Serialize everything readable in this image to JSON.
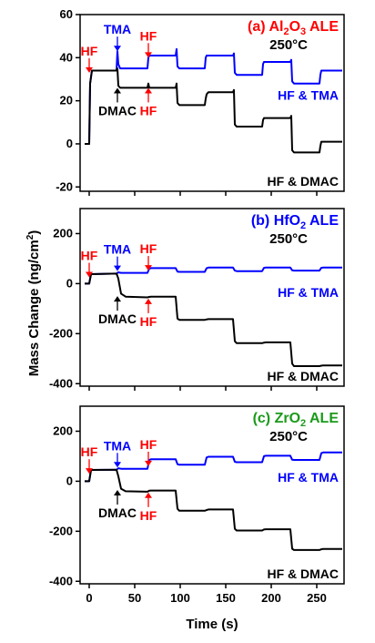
{
  "ylabel": "Mass Change (ng/cm",
  "ylabel_sup": "2",
  "ylabel_tail": ")",
  "xlabel": "Time (s)",
  "colors": {
    "hf": "#ff0000",
    "tma": "#0000ff",
    "dmac": "#000000",
    "green": "#1a9a1a"
  },
  "chart_data": [
    {
      "type": "line",
      "title_prefix": "(a) Al",
      "title_sub1": "2",
      "title_mid": "O",
      "title_sub2": "3",
      "title_suffix": " ALE",
      "title_color": "#ff0000",
      "temperature": "250°C",
      "xlim": [
        -10,
        280
      ],
      "ylim": [
        -22,
        60
      ],
      "yticks": [
        -20,
        0,
        20,
        40,
        60
      ],
      "xticks": [
        0,
        50,
        100,
        150,
        200,
        250
      ],
      "annotations": [
        {
          "text": "HF",
          "color": "#ff0000",
          "x": 0,
          "y_tip": 33,
          "dir": "down"
        },
        {
          "text": "TMA",
          "color": "#0000ff",
          "x": 31,
          "y_tip": 43,
          "dir": "down"
        },
        {
          "text": "HF",
          "color": "#ff0000",
          "x": 65,
          "y_tip": 40,
          "dir": "down"
        },
        {
          "text": "DMAC",
          "color": "#000000",
          "x": 31,
          "y_tip": 26,
          "dir": "up"
        },
        {
          "text": "HF",
          "color": "#ff0000",
          "x": 65,
          "y_tip": 26,
          "dir": "up"
        }
      ],
      "series": [
        {
          "name": "HF & TMA",
          "color": "#0000ff",
          "x": [
            -5,
            0,
            1,
            3,
            30,
            31,
            32,
            34,
            64,
            65,
            66,
            68,
            95,
            96,
            97,
            99,
            127,
            128,
            129,
            131,
            158,
            159,
            160,
            162,
            190,
            191,
            192,
            194,
            221,
            222,
            223,
            225,
            253,
            254,
            255,
            257,
            278
          ],
          "y": [
            0,
            0,
            28,
            34,
            34,
            43,
            37,
            35,
            35,
            40,
            41,
            41,
            41,
            44,
            36,
            35,
            35,
            40,
            41,
            41,
            41,
            42,
            33,
            32,
            32,
            37,
            38,
            38,
            38,
            39,
            29,
            28,
            28,
            32,
            34,
            34,
            34
          ]
        },
        {
          "name": "HF & DMAC",
          "color": "#000000",
          "x": [
            -5,
            0,
            1,
            3,
            30,
            31,
            32,
            34,
            64,
            65,
            66,
            68,
            95,
            96,
            97,
            99,
            127,
            128,
            129,
            131,
            158,
            159,
            160,
            162,
            190,
            191,
            192,
            194,
            221,
            222,
            223,
            225,
            253,
            254,
            255,
            257,
            278
          ],
          "y": [
            0,
            0,
            28,
            34,
            34,
            35,
            27,
            26,
            26,
            28,
            26,
            26,
            26,
            28,
            19,
            18,
            18,
            21,
            23,
            24,
            24,
            25,
            9,
            8,
            8,
            11,
            12,
            12,
            12,
            13,
            -3,
            -4,
            -4,
            -1,
            1,
            1,
            1
          ]
        }
      ]
    },
    {
      "type": "line",
      "title_prefix": "(b) HfO",
      "title_sub1": "2",
      "title_mid": "",
      "title_sub2": "",
      "title_suffix": " ALE",
      "title_color": "#0000ff",
      "temperature": "250°C",
      "xlim": [
        -10,
        280
      ],
      "ylim": [
        -410,
        300
      ],
      "yticks": [
        -400,
        -200,
        0,
        200
      ],
      "xticks": [
        0,
        50,
        100,
        150,
        200,
        250
      ],
      "annotations": [
        {
          "text": "HF",
          "color": "#ff0000",
          "x": 0,
          "y_tip": 25,
          "dir": "down"
        },
        {
          "text": "TMA",
          "color": "#0000ff",
          "x": 31,
          "y_tip": 50,
          "dir": "down"
        },
        {
          "text": "HF",
          "color": "#ff0000",
          "x": 65,
          "y_tip": 52,
          "dir": "down"
        },
        {
          "text": "DMAC",
          "color": "#000000",
          "x": 31,
          "y_tip": -50,
          "dir": "up"
        },
        {
          "text": "HF",
          "color": "#ff0000",
          "x": 65,
          "y_tip": -60,
          "dir": "up"
        }
      ],
      "series": [
        {
          "name": "HF & TMA",
          "color": "#0000ff",
          "x": [
            -5,
            0,
            2,
            30,
            32,
            35,
            64,
            66,
            68,
            95,
            97,
            99,
            127,
            129,
            131,
            158,
            160,
            162,
            190,
            192,
            194,
            221,
            223,
            225,
            253,
            255,
            257,
            278
          ],
          "y": [
            0,
            0,
            38,
            40,
            45,
            43,
            43,
            60,
            62,
            62,
            48,
            47,
            47,
            62,
            64,
            64,
            52,
            50,
            50,
            63,
            64,
            64,
            53,
            52,
            52,
            63,
            64,
            64
          ]
        },
        {
          "name": "HF & DMAC",
          "color": "#000000",
          "x": [
            -5,
            0,
            2,
            30,
            32,
            35,
            40,
            64,
            66,
            68,
            95,
            97,
            99,
            127,
            129,
            131,
            158,
            160,
            162,
            190,
            192,
            194,
            221,
            223,
            225,
            253,
            255,
            257,
            278
          ],
          "y": [
            0,
            0,
            38,
            40,
            20,
            -40,
            -52,
            -55,
            -53,
            -52,
            -52,
            -140,
            -145,
            -145,
            -143,
            -142,
            -142,
            -230,
            -238,
            -238,
            -236,
            -235,
            -235,
            -320,
            -330,
            -330,
            -328,
            -327,
            -327
          ]
        }
      ]
    },
    {
      "type": "line",
      "title_prefix": "(c) ZrO",
      "title_sub1": "2",
      "title_mid": "",
      "title_sub2": "",
      "title_suffix": " ALE",
      "title_color": "#1a9a1a",
      "temperature": "250°C",
      "xlim": [
        -10,
        280
      ],
      "ylim": [
        -410,
        300
      ],
      "yticks": [
        -400,
        -200,
        0,
        200
      ],
      "xticks": [
        0,
        50,
        100,
        150,
        200,
        250
      ],
      "annotations": [
        {
          "text": "HF",
          "color": "#ff0000",
          "x": 0,
          "y_tip": 30,
          "dir": "down"
        },
        {
          "text": "TMA",
          "color": "#0000ff",
          "x": 31,
          "y_tip": 55,
          "dir": "down"
        },
        {
          "text": "HF",
          "color": "#ff0000",
          "x": 65,
          "y_tip": 60,
          "dir": "down"
        },
        {
          "text": "DMAC",
          "color": "#000000",
          "x": 31,
          "y_tip": -35,
          "dir": "up"
        },
        {
          "text": "HF",
          "color": "#ff0000",
          "x": 65,
          "y_tip": -45,
          "dir": "up"
        }
      ],
      "series": [
        {
          "name": "HF & TMA",
          "color": "#0000ff",
          "x": [
            -5,
            0,
            2,
            30,
            32,
            35,
            64,
            66,
            68,
            95,
            97,
            99,
            127,
            129,
            131,
            158,
            160,
            162,
            190,
            192,
            194,
            221,
            223,
            225,
            253,
            255,
            257,
            278
          ],
          "y": [
            0,
            0,
            45,
            46,
            52,
            50,
            50,
            85,
            88,
            88,
            68,
            66,
            66,
            95,
            98,
            98,
            78,
            76,
            76,
            100,
            102,
            102,
            86,
            85,
            85,
            112,
            115,
            115
          ]
        },
        {
          "name": "HF & DMAC",
          "color": "#000000",
          "x": [
            -5,
            0,
            2,
            30,
            32,
            35,
            40,
            64,
            66,
            68,
            95,
            97,
            99,
            127,
            129,
            131,
            158,
            160,
            162,
            190,
            192,
            194,
            221,
            223,
            225,
            253,
            255,
            257,
            278
          ],
          "y": [
            0,
            0,
            45,
            46,
            20,
            -30,
            -40,
            -42,
            -38,
            -37,
            -37,
            -110,
            -118,
            -118,
            -115,
            -113,
            -113,
            -190,
            -197,
            -197,
            -193,
            -192,
            -192,
            -270,
            -275,
            -275,
            -272,
            -271,
            -271
          ]
        }
      ]
    }
  ]
}
